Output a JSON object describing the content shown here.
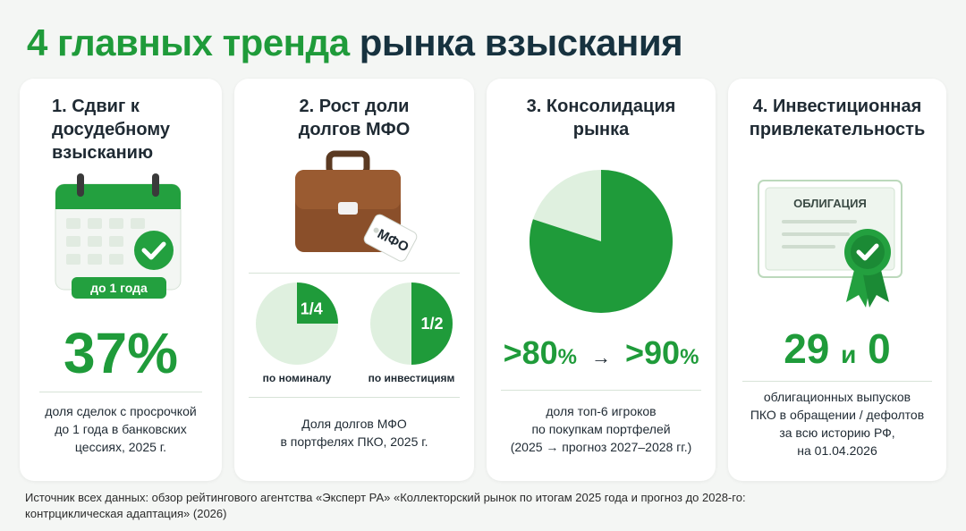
{
  "title": {
    "part1": "4 главных тренда",
    "part2": "рынка взыскания"
  },
  "cards": [
    {
      "title_lines": [
        "1. Сдвиг к",
        "досудебному",
        "взысканию"
      ],
      "badge": "до 1 года",
      "value": "37%",
      "desc_lines": [
        "доля сделок с просрочкой",
        "до 1 года в банковских",
        "цессиях, 2025 г."
      ],
      "icon": "calendar-check-icon"
    },
    {
      "title_lines": [
        "2. Рост доли",
        "долгов МФО"
      ],
      "tag": "МФО",
      "pies": [
        {
          "fraction": 0.25,
          "label": "1/4",
          "caption": "по номиналу"
        },
        {
          "fraction": 0.5,
          "label": "1/2",
          "caption": "по инвестициям"
        }
      ],
      "desc_lines": [
        "Доля долгов МФО",
        "в портфелях ПКО, 2025 г."
      ],
      "icon": "briefcase-icon"
    },
    {
      "title_lines": [
        "3. Консолидация",
        "рынка"
      ],
      "pie_fraction": 0.8,
      "value_from": ">80",
      "value_to": ">90",
      "percent": "%",
      "arrow": "→",
      "desc_lines": [
        "доля топ-6 игроков",
        "по покупкам портфелей",
        "(2025 → прогноз 2027–2028 гг.)"
      ]
    },
    {
      "title_lines": [
        "4. Инвестиционная",
        "привлекательность"
      ],
      "bond_label": "ОБЛИГАЦИЯ",
      "value_a": "29",
      "value_conj": "и",
      "value_b": "0",
      "desc_lines": [
        "облигационных выпусков",
        "ПКО в обращении / дефолтов",
        "за всю историю РФ,",
        "на 01.04.2026"
      ],
      "icon": "certificate-icon"
    }
  ],
  "source_lines": [
    "Источник всех данных: обзор рейтингового агентства «Эксперт РА» «Коллекторский рынок по итогам 2025 года и прогноз до 2028-го:",
    "контрциклическая адаптация» (2026)"
  ],
  "colors": {
    "green": "#1f9b3a",
    "light_green": "#dff0df",
    "dark": "#17323f",
    "brown": "#8a4f2a"
  }
}
